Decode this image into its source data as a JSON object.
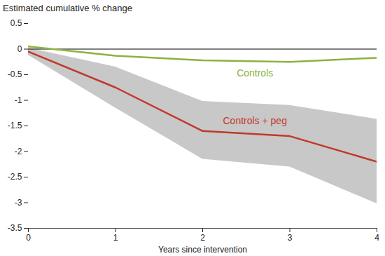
{
  "chart_data": {
    "type": "line",
    "title": "Estimated cumulative % change",
    "xlabel": "Years since intervention",
    "x": [
      0,
      1,
      2,
      3,
      4
    ],
    "xlim": [
      0,
      4
    ],
    "xticks": [
      0,
      1,
      2,
      3,
      4
    ],
    "ylim": [
      -3.5,
      0.5
    ],
    "yticks": [
      -3.5,
      -3,
      -2.5,
      -2,
      -1.5,
      -1,
      -0.5,
      0,
      0.5
    ],
    "grid": false,
    "series": [
      {
        "name": "Controls",
        "color": "#8cb33e",
        "values": [
          0.05,
          -0.13,
          -0.22,
          -0.25,
          -0.17
        ]
      },
      {
        "name": "Controls + peg",
        "color": "#c0392b",
        "values": [
          -0.05,
          -0.75,
          -1.6,
          -1.7,
          -2.2
        ],
        "ci_lower": [
          -0.12,
          -1.15,
          -2.15,
          -2.3,
          -3.02
        ],
        "ci_upper": [
          0.02,
          -0.35,
          -1.02,
          -1.1,
          -1.37
        ],
        "ci_color": "#c8c8c8"
      }
    ]
  }
}
